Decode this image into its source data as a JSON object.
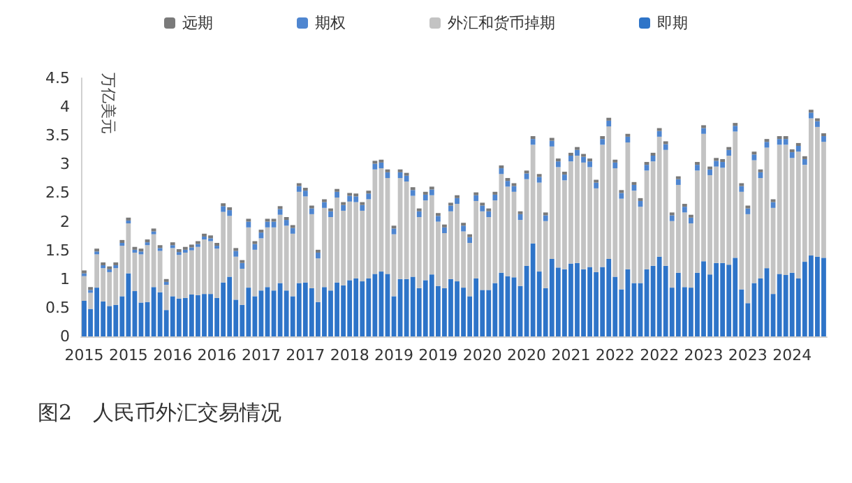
{
  "chart_data": {
    "type": "bar",
    "stacked": true,
    "title": "图2　人民币外汇交易情况",
    "ylabel": "万亿美元",
    "legend": "top",
    "grid": false,
    "ylim": [
      0,
      4.5
    ],
    "yticks": [
      0,
      0.5,
      1,
      1.5,
      2,
      2.5,
      3,
      3.5,
      4,
      4.5
    ],
    "categories": [
      "2015",
      null,
      null,
      null,
      null,
      null,
      null,
      "2015",
      null,
      null,
      null,
      null,
      null,
      null,
      "2016",
      null,
      null,
      null,
      null,
      null,
      null,
      "2016",
      null,
      null,
      null,
      null,
      null,
      null,
      "2017",
      null,
      null,
      null,
      null,
      null,
      null,
      "2017",
      null,
      null,
      null,
      null,
      null,
      null,
      "2018",
      null,
      null,
      null,
      null,
      null,
      null,
      "2019",
      null,
      null,
      null,
      null,
      null,
      null,
      "2019",
      null,
      null,
      null,
      null,
      null,
      null,
      "2020",
      null,
      null,
      null,
      null,
      null,
      null,
      "2020",
      null,
      null,
      null,
      null,
      null,
      null,
      "2021",
      null,
      null,
      null,
      null,
      null,
      null,
      "2022",
      null,
      null,
      null,
      null,
      null,
      null,
      "2022",
      null,
      null,
      null,
      null,
      null,
      null,
      "2023",
      null,
      null,
      null,
      null,
      null,
      null,
      "2023",
      null,
      null,
      null,
      null,
      null,
      null,
      "2024",
      null,
      null,
      null,
      null,
      null
    ],
    "series": [
      {
        "name": "即期",
        "color": "#2e74c8",
        "values": [
          0.62,
          0.48,
          0.85,
          0.61,
          0.53,
          0.55,
          0.7,
          1.1,
          0.79,
          0.59,
          0.6,
          0.86,
          0.77,
          0.46,
          0.7,
          0.66,
          0.67,
          0.73,
          0.72,
          0.74,
          0.74,
          0.67,
          0.94,
          1.04,
          0.64,
          0.55,
          0.85,
          0.7,
          0.8,
          0.86,
          0.8,
          0.93,
          0.8,
          0.7,
          0.93,
          0.94,
          0.84,
          0.6,
          0.86,
          0.8,
          0.94,
          0.89,
          0.98,
          1.01,
          0.96,
          1.01,
          1.09,
          1.13,
          1.09,
          0.7,
          1.0,
          1.0,
          1.04,
          0.84,
          0.98,
          1.08,
          0.88,
          0.84,
          1.0,
          0.96,
          0.85,
          0.7,
          1.01,
          0.81,
          0.81,
          0.93,
          1.11,
          1.05,
          1.03,
          0.88,
          1.23,
          1.62,
          1.13,
          0.84,
          1.35,
          1.2,
          1.17,
          1.27,
          1.28,
          1.17,
          1.21,
          1.12,
          1.21,
          1.35,
          1.04,
          0.82,
          1.17,
          0.93,
          0.93,
          1.17,
          1.23,
          1.39,
          1.23,
          0.85,
          1.11,
          0.86,
          0.85,
          1.11,
          1.31,
          1.08,
          1.28,
          1.28,
          1.25,
          1.37,
          0.82,
          0.58,
          0.93,
          1.01,
          1.19,
          0.74,
          1.09,
          1.07,
          1.11,
          1.01,
          1.3,
          1.41,
          1.39,
          1.37
        ]
      },
      {
        "name": "外汇和货币掉期",
        "color": "#c3c3c3",
        "values": [
          0.43,
          0.28,
          0.58,
          0.58,
          0.59,
          0.64,
          0.88,
          0.87,
          0.67,
          0.84,
          0.99,
          0.92,
          0.72,
          0.44,
          0.84,
          0.76,
          0.79,
          0.77,
          0.84,
          0.95,
          0.92,
          0.86,
          1.23,
          1.06,
          0.75,
          0.63,
          1.05,
          0.81,
          0.91,
          1.04,
          1.1,
          1.19,
          1.13,
          1.09,
          1.59,
          1.5,
          1.29,
          0.76,
          1.38,
          1.28,
          1.48,
          1.3,
          1.37,
          1.33,
          1.23,
          1.38,
          1.82,
          1.8,
          1.67,
          1.08,
          1.76,
          1.7,
          1.41,
          1.24,
          1.39,
          1.38,
          1.12,
          0.96,
          1.18,
          1.35,
          0.98,
          0.93,
          1.35,
          1.37,
          1.27,
          1.44,
          1.72,
          1.56,
          1.49,
          1.15,
          1.51,
          1.72,
          1.55,
          1.17,
          1.96,
          1.75,
          1.55,
          1.78,
          1.87,
          1.86,
          1.74,
          1.46,
          2.13,
          2.31,
          1.89,
          1.58,
          2.21,
          1.61,
          1.33,
          1.72,
          1.82,
          2.09,
          2.02,
          1.16,
          1.53,
          1.3,
          1.12,
          1.78,
          2.22,
          1.73,
          1.68,
          1.66,
          1.9,
          2.2,
          1.7,
          1.55,
          2.14,
          1.75,
          2.1,
          1.5,
          2.25,
          2.27,
          2.0,
          2.21,
          1.69,
          2.39,
          2.26,
          2.02
        ]
      },
      {
        "name": "期权",
        "color": "#4f86d0",
        "values": [
          0.05,
          0.05,
          0.05,
          0.05,
          0.05,
          0.05,
          0.05,
          0.05,
          0.05,
          0.05,
          0.05,
          0.05,
          0.05,
          0.05,
          0.05,
          0.05,
          0.05,
          0.05,
          0.05,
          0.05,
          0.05,
          0.05,
          0.1,
          0.1,
          0.1,
          0.1,
          0.1,
          0.1,
          0.1,
          0.1,
          0.1,
          0.1,
          0.1,
          0.1,
          0.1,
          0.1,
          0.1,
          0.1,
          0.1,
          0.1,
          0.1,
          0.1,
          0.1,
          0.1,
          0.1,
          0.1,
          0.1,
          0.1,
          0.1,
          0.1,
          0.1,
          0.1,
          0.1,
          0.1,
          0.1,
          0.1,
          0.1,
          0.1,
          0.1,
          0.1,
          0.1,
          0.1,
          0.1,
          0.1,
          0.1,
          0.1,
          0.1,
          0.1,
          0.1,
          0.1,
          0.1,
          0.1,
          0.1,
          0.1,
          0.1,
          0.1,
          0.1,
          0.1,
          0.1,
          0.1,
          0.1,
          0.1,
          0.1,
          0.1,
          0.1,
          0.1,
          0.1,
          0.1,
          0.1,
          0.1,
          0.1,
          0.1,
          0.1,
          0.1,
          0.1,
          0.1,
          0.1,
          0.1,
          0.1,
          0.1,
          0.1,
          0.1,
          0.1,
          0.1,
          0.1,
          0.1,
          0.1,
          0.1,
          0.1,
          0.1,
          0.1,
          0.1,
          0.1,
          0.1,
          0.1,
          0.1,
          0.1,
          0.1
        ]
      },
      {
        "name": "远期",
        "color": "#7a7a7a",
        "values": [
          0.05,
          0.05,
          0.05,
          0.05,
          0.05,
          0.05,
          0.05,
          0.05,
          0.05,
          0.05,
          0.05,
          0.05,
          0.05,
          0.05,
          0.05,
          0.05,
          0.05,
          0.05,
          0.05,
          0.05,
          0.05,
          0.05,
          0.05,
          0.05,
          0.05,
          0.05,
          0.05,
          0.05,
          0.05,
          0.05,
          0.05,
          0.05,
          0.05,
          0.05,
          0.05,
          0.05,
          0.05,
          0.05,
          0.05,
          0.05,
          0.05,
          0.05,
          0.05,
          0.05,
          0.05,
          0.05,
          0.05,
          0.05,
          0.05,
          0.05,
          0.05,
          0.05,
          0.05,
          0.05,
          0.05,
          0.05,
          0.05,
          0.05,
          0.05,
          0.05,
          0.05,
          0.05,
          0.05,
          0.05,
          0.05,
          0.05,
          0.05,
          0.05,
          0.05,
          0.05,
          0.05,
          0.05,
          0.05,
          0.05,
          0.05,
          0.05,
          0.05,
          0.05,
          0.05,
          0.05,
          0.05,
          0.05,
          0.05,
          0.05,
          0.05,
          0.05,
          0.05,
          0.05,
          0.05,
          0.05,
          0.05,
          0.05,
          0.05,
          0.05,
          0.05,
          0.05,
          0.05,
          0.05,
          0.05,
          0.05,
          0.05,
          0.05,
          0.05,
          0.05,
          0.05,
          0.05,
          0.05,
          0.05,
          0.05,
          0.05,
          0.05,
          0.05,
          0.05,
          0.05,
          0.05,
          0.05,
          0.05,
          0.05
        ]
      }
    ]
  }
}
